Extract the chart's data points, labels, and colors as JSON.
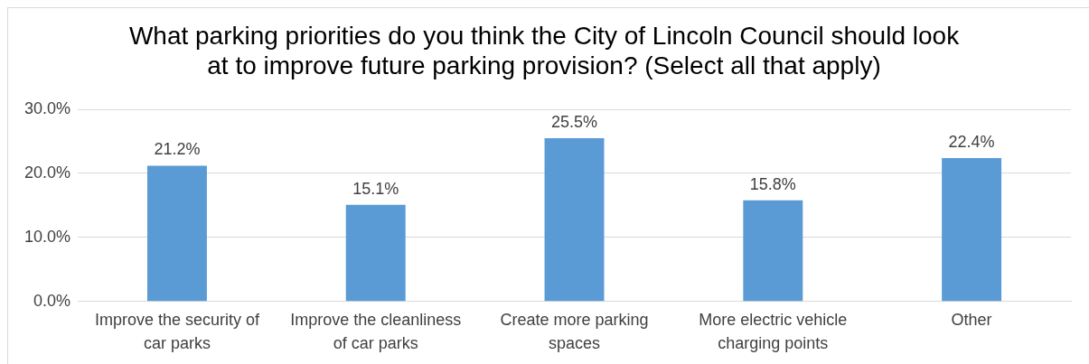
{
  "chart_data": {
    "type": "bar",
    "title": "What parking priorities do you think the City of Lincoln Council should look at to improve future parking provision? (Select all that apply)",
    "categories": [
      "Improve the security of car parks",
      "Improve the cleanliness of car parks",
      "Create more parking spaces",
      "More electric vehicle charging points",
      "Other"
    ],
    "values": [
      21.2,
      15.1,
      25.5,
      15.8,
      22.4
    ],
    "value_labels": [
      "21.2%",
      "15.1%",
      "25.5%",
      "15.8%",
      "22.4%"
    ],
    "color": "#5b9bd5",
    "ylim": [
      0,
      30
    ],
    "yticks": [
      {
        "value": 0,
        "label": "0.0%"
      },
      {
        "value": 10,
        "label": "10.0%"
      },
      {
        "value": 20,
        "label": "20.0%"
      },
      {
        "value": 30,
        "label": "30.0%"
      }
    ],
    "grid": "y",
    "legend": false
  }
}
